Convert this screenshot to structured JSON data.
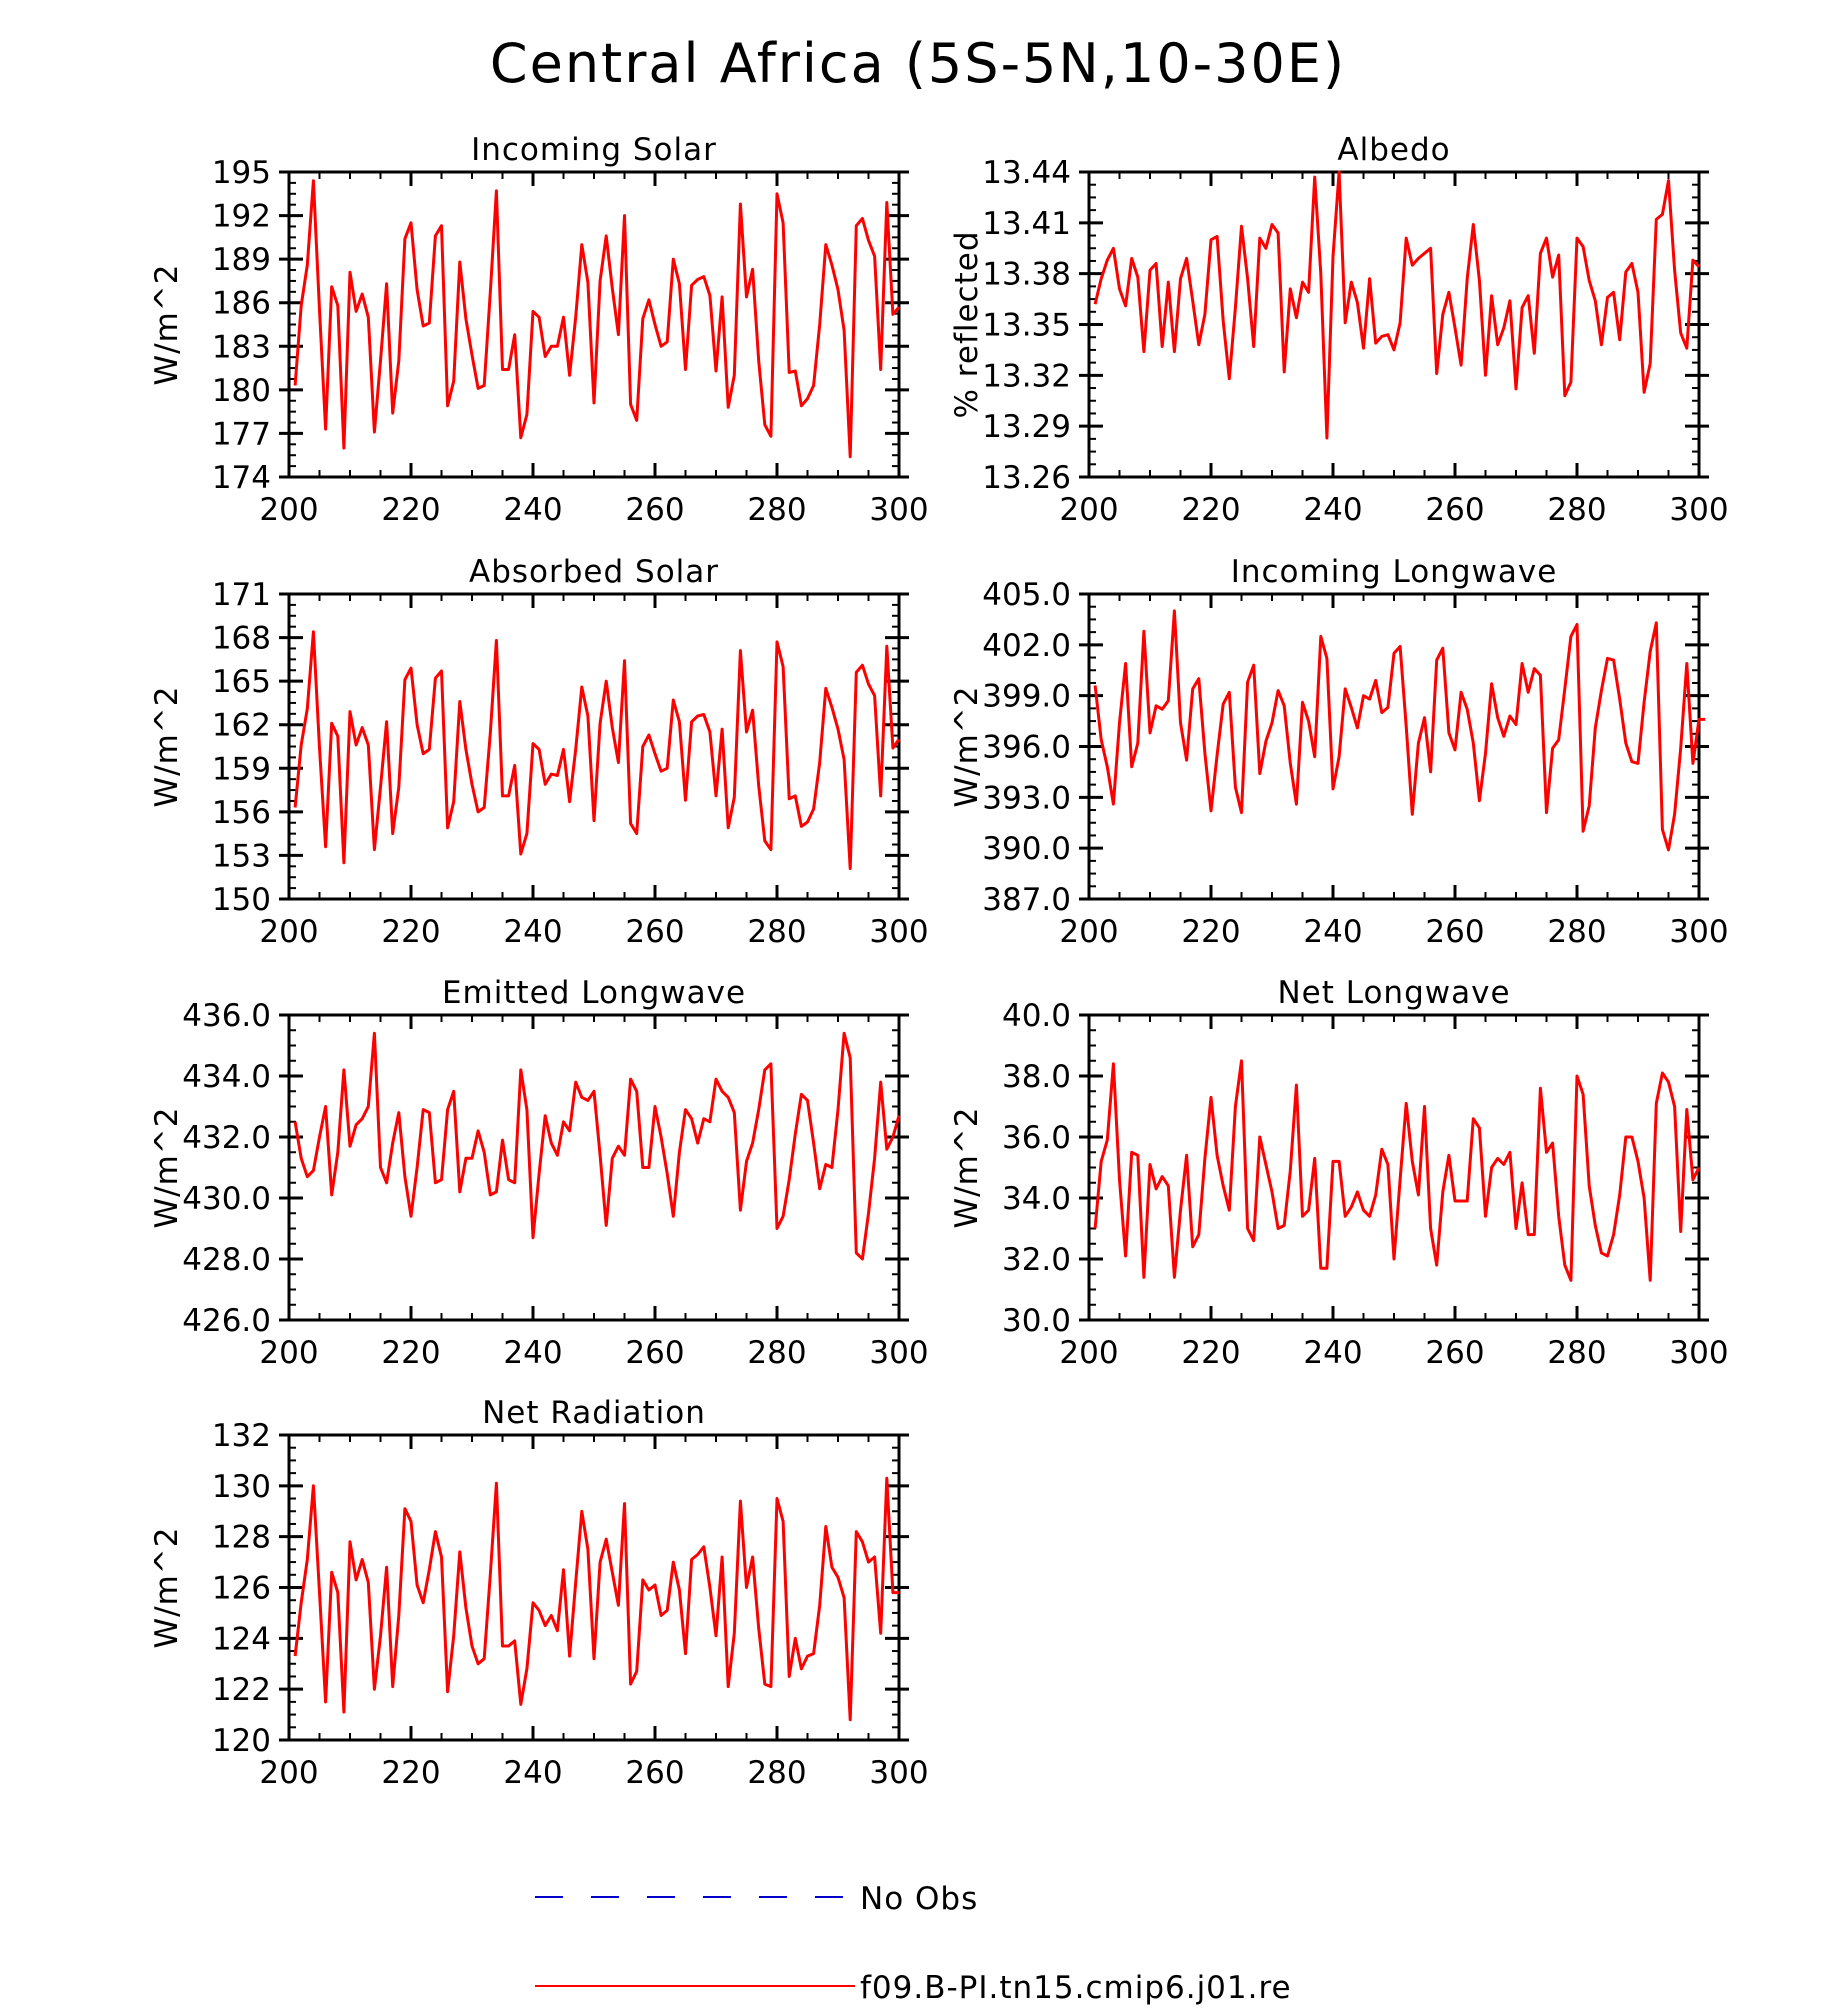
{
  "figure": {
    "title": "Central Africa (5S-5N,10-30E)"
  },
  "colors": {
    "model": "#ff0000",
    "obs": "#0000cc",
    "axes": "#000000"
  },
  "legend": [
    {
      "label": "No Obs",
      "style": "dashed",
      "color": "#0000cc"
    },
    {
      "label": "f09.B-PI.tn15.cmip6.j01.re",
      "style": "solid",
      "color": "#ff0000"
    }
  ],
  "chart_data": [
    {
      "type": "line",
      "title": "Incoming Solar",
      "ylabel": "W/m^2",
      "xlim": [
        200,
        300
      ],
      "ylim": [
        174,
        195
      ],
      "xticks": [
        "200",
        "220",
        "240",
        "260",
        "280",
        "300"
      ],
      "yticks": [
        "174",
        "177",
        "180",
        "183",
        "186",
        "189",
        "192",
        "195"
      ],
      "series": [
        {
          "x0": 201,
          "dx": 1,
          "values": [
            180.3,
            185.8,
            188.6,
            194.4,
            185.5,
            177.3,
            187.1,
            185.8,
            176.0,
            188.1,
            185.4,
            186.6,
            185.0,
            177.1,
            182.0,
            187.3,
            178.4,
            182.0,
            190.4,
            191.5,
            186.9,
            184.4,
            184.6,
            190.6,
            191.3,
            178.9,
            180.6,
            188.8,
            184.9,
            182.4,
            180.1,
            180.3,
            186.7,
            193.7,
            181.4,
            181.4,
            183.8,
            176.7,
            178.3,
            185.4,
            185.0,
            182.3,
            183.0,
            183.0,
            185.0,
            181.0,
            185.0,
            190.0,
            187.4,
            179.1,
            187.5,
            190.6,
            187.0,
            183.8,
            192.0,
            179.0,
            177.9,
            184.9,
            186.2,
            184.5,
            183.0,
            183.3,
            189.0,
            187.3,
            181.4,
            187.2,
            187.6,
            187.8,
            186.5,
            181.3,
            186.4,
            178.8,
            181.0,
            192.8,
            186.4,
            188.3,
            182.0,
            177.6,
            176.8,
            193.5,
            191.5,
            181.2,
            181.3,
            178.9,
            179.4,
            180.3,
            184.5,
            190.0,
            188.6,
            186.9,
            184.1,
            175.4,
            191.3,
            191.8,
            190.3,
            189.2,
            181.4,
            192.9,
            185.2,
            185.7
          ]
        }
      ]
    },
    {
      "type": "line",
      "title": "Albedo",
      "ylabel": "% reflected",
      "xlim": [
        200,
        300
      ],
      "ylim": [
        13.26,
        13.44
      ],
      "xticks": [
        "200",
        "220",
        "240",
        "260",
        "280",
        "300"
      ],
      "yticks": [
        "13.26",
        "13.29",
        "13.32",
        "13.35",
        "13.38",
        "13.41",
        "13.44"
      ],
      "series": [
        {
          "x0": 201,
          "dx": 1,
          "values": [
            13.362,
            13.377,
            13.388,
            13.395,
            13.371,
            13.361,
            13.389,
            13.378,
            13.334,
            13.382,
            13.386,
            13.337,
            13.375,
            13.334,
            13.377,
            13.389,
            13.364,
            13.338,
            13.356,
            13.4,
            13.402,
            13.352,
            13.318,
            13.36,
            13.408,
            13.377,
            13.337,
            13.401,
            13.395,
            13.409,
            13.404,
            13.322,
            13.371,
            13.354,
            13.375,
            13.369,
            13.437,
            13.38,
            13.283,
            13.39,
            13.44,
            13.351,
            13.375,
            13.363,
            13.336,
            13.377,
            13.339,
            13.343,
            13.344,
            13.335,
            13.351,
            13.401,
            13.385,
            13.389,
            13.392,
            13.395,
            13.321,
            13.356,
            13.369,
            13.348,
            13.326,
            13.377,
            13.409,
            13.376,
            13.32,
            13.367,
            13.338,
            13.348,
            13.364,
            13.312,
            13.36,
            13.367,
            13.333,
            13.392,
            13.401,
            13.378,
            13.391,
            13.308,
            13.316,
            13.401,
            13.396,
            13.376,
            13.364,
            13.338,
            13.366,
            13.369,
            13.341,
            13.381,
            13.386,
            13.369,
            13.31,
            13.327,
            13.412,
            13.415,
            13.435,
            13.382,
            13.345,
            13.336,
            13.388,
            13.384
          ]
        }
      ]
    },
    {
      "type": "line",
      "title": "Absorbed Solar",
      "ylabel": "W/m^2",
      "xlim": [
        200,
        300
      ],
      "ylim": [
        150,
        171
      ],
      "xticks": [
        "200",
        "220",
        "240",
        "260",
        "280",
        "300"
      ],
      "yticks": [
        "150",
        "153",
        "156",
        "159",
        "162",
        "165",
        "168",
        "171"
      ],
      "series": [
        {
          "x0": 201,
          "dx": 1,
          "values": [
            156.3,
            160.6,
            163.1,
            168.4,
            160.4,
            153.6,
            162.1,
            161.2,
            152.5,
            162.9,
            160.6,
            161.8,
            160.6,
            153.4,
            157.7,
            162.2,
            154.5,
            157.7,
            165.1,
            165.9,
            162.0,
            160.0,
            160.3,
            165.2,
            165.7,
            154.9,
            156.7,
            163.6,
            160.3,
            157.9,
            156.0,
            156.3,
            161.4,
            167.8,
            157.1,
            157.1,
            159.2,
            153.1,
            154.5,
            160.7,
            160.3,
            157.9,
            158.6,
            158.5,
            160.3,
            156.7,
            160.3,
            164.6,
            162.6,
            155.4,
            162.1,
            165.0,
            161.8,
            159.4,
            166.4,
            155.2,
            154.5,
            160.5,
            161.3,
            160.0,
            158.8,
            159.0,
            163.7,
            162.2,
            156.8,
            162.2,
            162.6,
            162.7,
            161.5,
            157.1,
            161.7,
            154.9,
            157.0,
            167.1,
            161.5,
            163.0,
            157.8,
            154.0,
            153.4,
            167.7,
            166.0,
            156.9,
            157.1,
            155.0,
            155.3,
            156.2,
            159.4,
            164.5,
            163.2,
            161.7,
            159.6,
            152.1,
            165.6,
            166.1,
            164.8,
            164.0,
            157.1,
            167.4,
            160.4,
            161.0
          ]
        }
      ]
    },
    {
      "type": "line",
      "title": "Incoming Longwave",
      "ylabel": "W/m^2",
      "xlim": [
        200,
        300
      ],
      "ylim": [
        387,
        405
      ],
      "xticks": [
        "200",
        "220",
        "240",
        "260",
        "280",
        "300"
      ],
      "yticks": [
        "387.0",
        "390.0",
        "393.0",
        "396.0",
        "399.0",
        "402.0",
        "405.0"
      ],
      "series": [
        {
          "x0": 201,
          "dx": 1,
          "values": [
            399.6,
            396.4,
            394.8,
            392.6,
            397.4,
            400.9,
            394.8,
            396.2,
            402.8,
            396.8,
            398.4,
            398.2,
            398.7,
            404.0,
            397.4,
            395.2,
            399.4,
            400.0,
            395.6,
            392.2,
            395.5,
            398.5,
            399.2,
            393.6,
            392.1,
            399.8,
            400.8,
            394.4,
            396.3,
            397.4,
            399.3,
            398.4,
            395.0,
            392.6,
            398.6,
            397.5,
            395.4,
            402.5,
            401.2,
            393.5,
            395.4,
            399.4,
            398.3,
            397.1,
            399.0,
            398.8,
            399.9,
            398.0,
            398.3,
            401.5,
            401.9,
            397.2,
            392.0,
            396.2,
            397.7,
            394.5,
            401.1,
            401.8,
            396.8,
            395.8,
            399.2,
            398.2,
            396.2,
            392.8,
            395.6,
            399.7,
            397.7,
            396.6,
            397.8,
            397.3,
            400.9,
            399.2,
            400.6,
            400.2,
            392.1,
            395.9,
            396.4,
            399.4,
            402.5,
            403.2,
            391.0,
            392.5,
            397.1,
            399.3,
            401.2,
            401.1,
            398.8,
            396.2,
            395.1,
            395.0,
            398.6,
            401.6,
            403.3,
            391.1,
            389.9,
            392.0,
            395.9,
            400.9,
            395.0,
            397.6,
            397.6
          ]
        }
      ]
    },
    {
      "type": "line",
      "title": "Emitted Longwave",
      "ylabel": "W/m^2",
      "xlim": [
        200,
        300
      ],
      "ylim": [
        426,
        436
      ],
      "xticks": [
        "200",
        "220",
        "240",
        "260",
        "280",
        "300"
      ],
      "yticks": [
        "426.0",
        "428.0",
        "430.0",
        "432.0",
        "434.0",
        "436.0"
      ],
      "series": [
        {
          "x0": 201,
          "dx": 1,
          "values": [
            432.5,
            431.3,
            430.7,
            430.9,
            432.0,
            433.0,
            430.1,
            431.5,
            434.2,
            431.7,
            432.4,
            432.6,
            433.0,
            435.4,
            431.0,
            430.5,
            431.8,
            432.8,
            430.7,
            429.4,
            431.0,
            432.9,
            432.8,
            430.5,
            430.6,
            432.9,
            433.5,
            430.2,
            431.3,
            431.3,
            432.2,
            431.5,
            430.1,
            430.2,
            431.9,
            430.6,
            430.5,
            434.2,
            432.9,
            428.7,
            430.8,
            432.7,
            431.8,
            431.4,
            432.5,
            432.2,
            433.8,
            433.3,
            433.2,
            433.5,
            431.4,
            429.1,
            431.3,
            431.7,
            431.4,
            433.9,
            433.5,
            431.0,
            431.0,
            433.0,
            432.0,
            430.8,
            429.4,
            431.5,
            432.9,
            432.6,
            431.8,
            432.6,
            432.5,
            433.9,
            433.5,
            433.3,
            432.8,
            429.6,
            431.2,
            431.8,
            432.9,
            434.2,
            434.4,
            429.0,
            429.4,
            430.6,
            432.1,
            433.4,
            433.2,
            431.8,
            430.3,
            431.1,
            431.0,
            432.9,
            435.4,
            434.6,
            428.2,
            428.0,
            429.5,
            431.3,
            433.8,
            431.6,
            432.0,
            432.7
          ]
        }
      ]
    },
    {
      "type": "line",
      "title": "Net Longwave",
      "ylabel": "W/m^2",
      "xlim": [
        200,
        300
      ],
      "ylim": [
        30,
        40
      ],
      "xticks": [
        "200",
        "220",
        "240",
        "260",
        "280",
        "300"
      ],
      "yticks": [
        "30.0",
        "32.0",
        "34.0",
        "36.0",
        "38.0",
        "40.0"
      ],
      "series": [
        {
          "x0": 201,
          "dx": 1,
          "values": [
            33.0,
            35.2,
            35.9,
            38.4,
            34.6,
            32.1,
            35.5,
            35.4,
            31.4,
            35.1,
            34.3,
            34.7,
            34.4,
            31.4,
            33.6,
            35.4,
            32.4,
            32.8,
            35.3,
            37.3,
            35.4,
            34.4,
            33.6,
            37.0,
            38.5,
            33.0,
            32.6,
            36.0,
            35.1,
            34.2,
            33.0,
            33.1,
            34.9,
            37.7,
            33.4,
            33.6,
            35.3,
            31.7,
            31.7,
            35.2,
            35.2,
            33.4,
            33.7,
            34.2,
            33.6,
            33.4,
            34.1,
            35.6,
            35.1,
            32.0,
            34.6,
            37.1,
            35.2,
            34.1,
            37.0,
            33.0,
            31.8,
            34.2,
            35.4,
            33.9,
            33.9,
            33.9,
            36.6,
            36.3,
            33.4,
            35.0,
            35.3,
            35.1,
            35.5,
            33.0,
            34.5,
            32.8,
            32.8,
            37.6,
            35.5,
            35.8,
            33.4,
            31.8,
            31.3,
            38.0,
            37.4,
            34.4,
            33.1,
            32.2,
            32.1,
            32.8,
            34.1,
            36.0,
            36.0,
            35.2,
            34.0,
            31.3,
            37.1,
            38.1,
            37.8,
            37.0,
            32.9,
            36.9,
            34.6,
            35.0
          ]
        }
      ]
    },
    {
      "type": "line",
      "title": "Net Radiation",
      "ylabel": "W/m^2",
      "xlim": [
        200,
        300
      ],
      "ylim": [
        120,
        132
      ],
      "xticks": [
        "200",
        "220",
        "240",
        "260",
        "280",
        "300"
      ],
      "yticks": [
        "120",
        "122",
        "124",
        "126",
        "128",
        "130",
        "132"
      ],
      "series": [
        {
          "x0": 201,
          "dx": 1,
          "values": [
            123.3,
            125.4,
            127.1,
            130.0,
            125.8,
            121.5,
            126.6,
            125.8,
            121.1,
            127.8,
            126.3,
            127.1,
            126.2,
            122.0,
            124.1,
            126.8,
            122.1,
            124.9,
            129.1,
            128.6,
            126.1,
            125.4,
            126.7,
            128.2,
            127.2,
            121.9,
            124.1,
            127.4,
            125.2,
            123.7,
            123.0,
            123.2,
            126.5,
            130.1,
            123.7,
            123.7,
            123.9,
            121.4,
            122.8,
            125.4,
            125.1,
            124.5,
            124.9,
            124.3,
            126.7,
            123.3,
            126.2,
            129.0,
            127.5,
            123.2,
            127.0,
            127.9,
            126.6,
            125.3,
            129.3,
            122.2,
            122.7,
            126.3,
            125.9,
            126.1,
            124.9,
            125.1,
            127.0,
            125.9,
            123.4,
            127.1,
            127.3,
            127.6,
            126.0,
            124.1,
            127.2,
            122.1,
            124.2,
            129.4,
            126.0,
            127.2,
            124.4,
            122.2,
            122.1,
            129.5,
            128.6,
            122.5,
            124.0,
            122.8,
            123.3,
            123.4,
            125.3,
            128.4,
            126.8,
            126.4,
            125.6,
            120.8,
            128.2,
            127.8,
            127.0,
            127.2,
            124.2,
            130.3,
            125.8,
            125.8
          ]
        }
      ]
    }
  ]
}
